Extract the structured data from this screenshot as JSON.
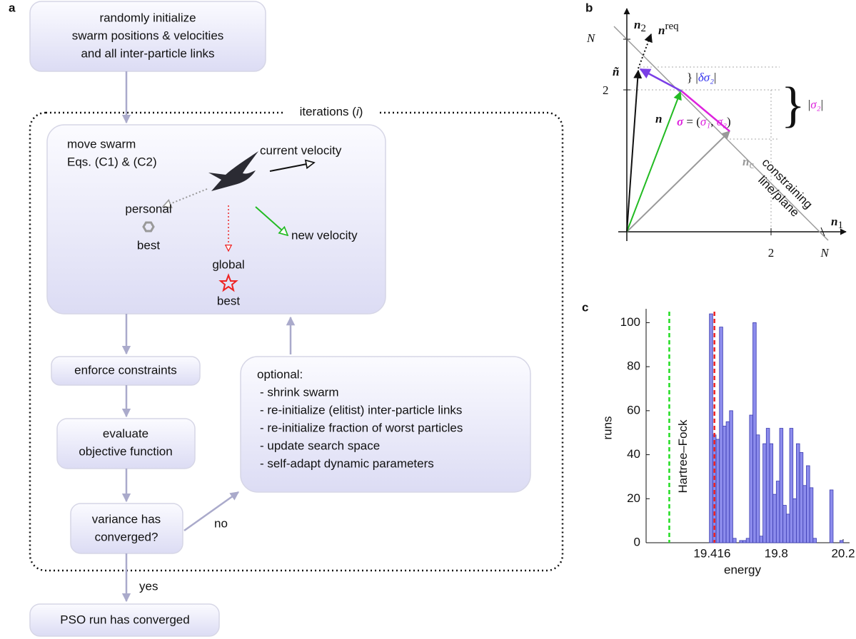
{
  "panel_a": {
    "label": "a",
    "start": [
      "randomly initialize",
      "swarm positions & velocities",
      "and all inter-particle links"
    ],
    "iterations": [
      "iterations (",
      "i",
      ")"
    ],
    "move_swarm": {
      "title": [
        "move swarm",
        "Eqs. (C1) & (C2)"
      ],
      "current_velocity": "current velocity",
      "personal_best": [
        "personal",
        "best"
      ],
      "new_velocity": "new velocity",
      "global_best": [
        "global",
        "best"
      ]
    },
    "enforce": "enforce constraints",
    "evaluate": [
      "evaluate",
      "objective function"
    ],
    "variance": [
      "variance has",
      "converged?"
    ],
    "no": "no",
    "yes": "yes",
    "converged": "PSO run has converged",
    "optional": {
      "title": "optional:",
      "items": [
        "- shrink swarm",
        "- re-initialize (elitist) inter-particle links",
        "- re-initialize fraction of worst particles",
        "- update search space",
        "- self-adapt dynamic parameters"
      ]
    }
  },
  "panel_b": {
    "label": "b",
    "axis_y": {
      "base": "n",
      "sub": "2"
    },
    "axis_x": {
      "base": "n",
      "sub": "1"
    },
    "y_ticks": [
      "N",
      "2"
    ],
    "x_ticks": [
      "2",
      "N"
    ],
    "n_req": {
      "base": "n",
      "sup": "req"
    },
    "n_tilde": "ñ",
    "n": "n",
    "delta_sigma": [
      "}",
      " |",
      "δσ₂",
      "|"
    ],
    "sigma_eq": [
      "σ",
      " = (",
      "σ₁",
      ", ",
      "σ₂",
      ")"
    ],
    "sigma2": [
      "}",
      " |",
      "σ₂",
      "|"
    ],
    "n_c": {
      "base": "n",
      "sub": "c"
    },
    "constraint": [
      "constraining",
      "line/plane"
    ]
  },
  "chart_data": {
    "type": "histogram",
    "label": "c",
    "xlabel": "energy",
    "ylabel": "runs",
    "bins": [
      19.4,
      19.42,
      19.44,
      19.46,
      19.48,
      19.5,
      19.52,
      19.54,
      19.56,
      19.58,
      19.6,
      19.62,
      19.64,
      19.66,
      19.68,
      19.7,
      19.72,
      19.74,
      19.76,
      19.78,
      19.8,
      19.82,
      19.84,
      19.86,
      19.88,
      19.9,
      19.92,
      19.94,
      19.96,
      19.98,
      20.0,
      20.02,
      20.04,
      20.06,
      20.08,
      20.1,
      20.12,
      20.14,
      20.16,
      20.18,
      20.2
    ],
    "counts": [
      104,
      49,
      47,
      98,
      53,
      55,
      60,
      2,
      0,
      1,
      1,
      2,
      58,
      100,
      49,
      3,
      45,
      52,
      45,
      22,
      28,
      52,
      17,
      13,
      52,
      20,
      45,
      41,
      26,
      35,
      25,
      2,
      0,
      0,
      0,
      0,
      24,
      0,
      0,
      1
    ],
    "color": "#8c8cec",
    "xlim": [
      19.0,
      20.2
    ],
    "ylim": [
      0,
      105
    ],
    "xticks": [
      19.416,
      19.8,
      20.2
    ],
    "yticks": [
      0,
      20,
      40,
      60,
      80,
      100
    ],
    "lines": [
      {
        "name": "Hartree–Fock",
        "value": 19.16,
        "color": "#22dd22"
      },
      {
        "value": 19.43,
        "color": "#ee2222"
      }
    ]
  }
}
